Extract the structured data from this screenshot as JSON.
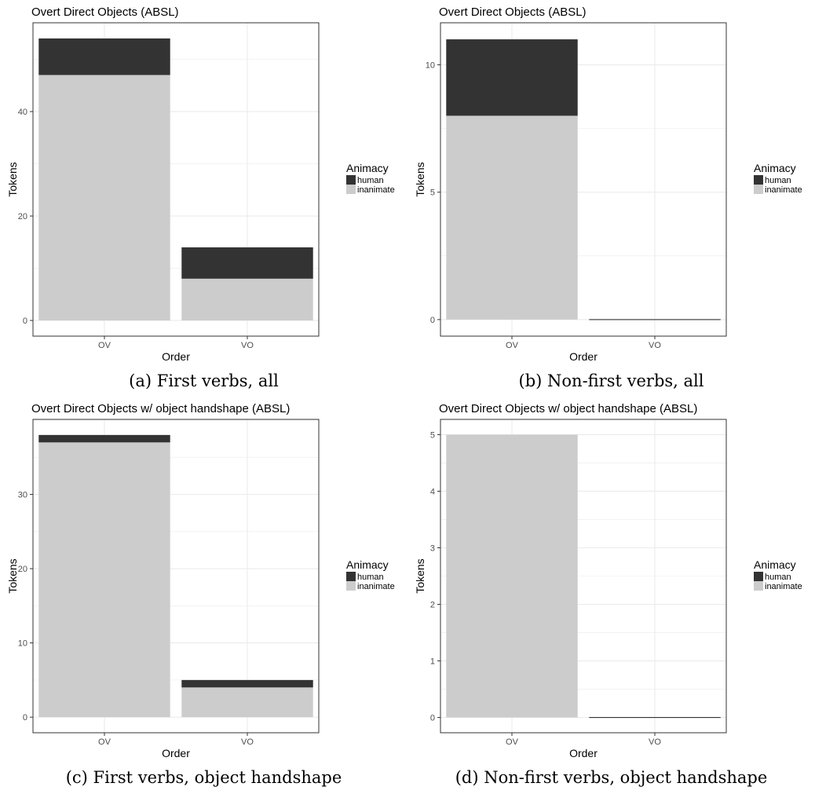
{
  "colors": {
    "human": "#333333",
    "inanimate": "#cccccc",
    "grid": "#ebebeb",
    "border": "#333333",
    "tick_text": "#4d4d4d"
  },
  "legend_placement": "right",
  "chart_data": [
    {
      "type": "bar",
      "stacked": true,
      "title": "Overt Direct Objects (ABSL)",
      "xlabel": "Order",
      "ylabel": "Tokens",
      "categories": [
        "OV",
        "VO"
      ],
      "series": [
        {
          "name": "human",
          "values": [
            7,
            6
          ]
        },
        {
          "name": "inanimate",
          "values": [
            47,
            8
          ]
        }
      ],
      "ylim": [
        -3,
        57
      ],
      "yticks": [
        0,
        20,
        40
      ],
      "legend_title": "Animacy",
      "grid": true
    },
    {
      "type": "bar",
      "stacked": true,
      "title": "Overt Direct Objects (ABSL)",
      "xlabel": "Order",
      "ylabel": "Tokens",
      "categories": [
        "OV",
        "VO"
      ],
      "series": [
        {
          "name": "human",
          "values": [
            3,
            0
          ]
        },
        {
          "name": "inanimate",
          "values": [
            8,
            0
          ]
        }
      ],
      "ylim": [
        -0.65,
        11.65
      ],
      "yticks": [
        0,
        5,
        10
      ],
      "legend_title": "Animacy",
      "grid": true
    },
    {
      "type": "bar",
      "stacked": true,
      "title": "Overt Direct Objects w/ object handshape (ABSL)",
      "xlabel": "Order",
      "ylabel": "Tokens",
      "categories": [
        "OV",
        "VO"
      ],
      "series": [
        {
          "name": "human",
          "values": [
            1,
            1
          ]
        },
        {
          "name": "inanimate",
          "values": [
            37,
            4
          ]
        }
      ],
      "ylim": [
        -2.1,
        40.1
      ],
      "yticks": [
        0,
        10,
        20,
        30
      ],
      "legend_title": "Animacy",
      "grid": true
    },
    {
      "type": "bar",
      "stacked": true,
      "title": "Overt Direct Objects w/ object handshape (ABSL)",
      "xlabel": "Order",
      "ylabel": "Tokens",
      "categories": [
        "OV",
        "VO"
      ],
      "series": [
        {
          "name": "human",
          "values": [
            0,
            0
          ]
        },
        {
          "name": "inanimate",
          "values": [
            5,
            0
          ]
        }
      ],
      "ylim": [
        -0.27,
        5.27
      ],
      "yticks": [
        0,
        1,
        2,
        3,
        4,
        5
      ],
      "legend_title": "Animacy",
      "grid": true
    }
  ],
  "captions": [
    "(a) First verbs, all",
    "(b) Non-first verbs, all",
    "(c) First verbs, object handshape",
    "(d) Non-first verbs, object handshape"
  ]
}
